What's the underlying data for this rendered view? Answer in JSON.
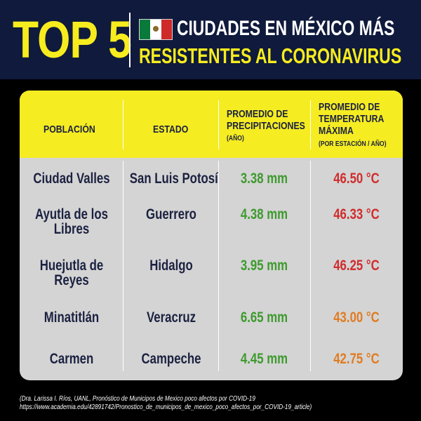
{
  "header": {
    "top_label": "TOP 5",
    "title_line1": "CIUDADES EN MÉXICO MÁS",
    "title_line2": "RESISTENTES AL CORONAVIRUS",
    "flag_icon": "mexico-flag-icon",
    "colors": {
      "background": "#0f1a3c",
      "accent": "#f7ec1e",
      "title": "#ffffff"
    }
  },
  "table": {
    "columns": {
      "poblacion": "POBLACIÓN",
      "estado": "ESTADO",
      "precip_line1": "PROMEDIO DE",
      "precip_line2": "PRECIPITACIONES",
      "precip_sub": "(AÑO)",
      "temp_line1": "PROMEDIO DE",
      "temp_line2": "TEMPERATURA",
      "temp_line3": "MÁXIMA",
      "temp_sub": "(POR ESTACIÓN / AÑO)"
    },
    "rows": [
      {
        "poblacion_1": "Ciudad Valles",
        "poblacion_2": "",
        "estado": "San Luis Potosí",
        "precipitacion": "3.38 mm",
        "temperatura": "46.50 °C",
        "temp_color": "red"
      },
      {
        "poblacion_1": "Ayutla de los",
        "poblacion_2": "Libres",
        "estado": "Guerrero",
        "precipitacion": "4.38 mm",
        "temperatura": "46.33 °C",
        "temp_color": "red"
      },
      {
        "poblacion_1": "Huejutla de",
        "poblacion_2": "Reyes",
        "estado": "Hidalgo",
        "precipitacion": "3.95 mm",
        "temperatura": "46.25 °C",
        "temp_color": "red"
      },
      {
        "poblacion_1": "Minatitlán",
        "poblacion_2": "",
        "estado": "Veracruz",
        "precipitacion": "6.65 mm",
        "temperatura": "43.00 °C",
        "temp_color": "orange"
      },
      {
        "poblacion_1": "Carmen",
        "poblacion_2": "",
        "estado": "Campeche",
        "precipitacion": "4.45 mm",
        "temperatura": "42.75 °C",
        "temp_color": "orange"
      }
    ],
    "colors": {
      "header": "#f5ec22",
      "body": "#d4d4d4",
      "text": "#1b2140",
      "green": "#3e9a2e",
      "red": "#d02d2d",
      "orange": "#e07c22"
    }
  },
  "footer": {
    "source_line1": "(Dra. Larissa I. Ríos, UANL, Pronóstico de Municipos de Mexico poco afectos por COVID-19",
    "source_line2": "https://www.academia.edu/42891742/Pronostico_de_municipos_de_mexico_poco_afectos_por_COVID-19_article)"
  }
}
